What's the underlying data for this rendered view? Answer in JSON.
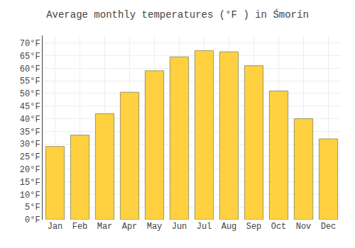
{
  "chart_data": {
    "type": "bar",
    "title": "Average monthly temperatures (°F ) in Śmorín",
    "categories": [
      "Jan",
      "Feb",
      "Mar",
      "Apr",
      "May",
      "Jun",
      "Jul",
      "Aug",
      "Sep",
      "Oct",
      "Nov",
      "Dec"
    ],
    "values": [
      29,
      33.5,
      42,
      50.5,
      59,
      64.5,
      67,
      66.5,
      61,
      51,
      40,
      32
    ],
    "color": "#FFD040",
    "ylim": [
      0,
      73
    ],
    "yticks": [
      {
        "value": 0,
        "label": "0°F"
      },
      {
        "value": 5,
        "label": "5°F"
      },
      {
        "value": 10,
        "label": "10°F"
      },
      {
        "value": 15,
        "label": "15°F"
      },
      {
        "value": 20,
        "label": "20°F"
      },
      {
        "value": 25,
        "label": "25°F"
      },
      {
        "value": 30,
        "label": "30°F"
      },
      {
        "value": 35,
        "label": "35°F"
      },
      {
        "value": 40,
        "label": "40°F"
      },
      {
        "value": 45,
        "label": "45°F"
      },
      {
        "value": 50,
        "label": "50°F"
      },
      {
        "value": 55,
        "label": "55°F"
      },
      {
        "value": 60,
        "label": "60°F"
      },
      {
        "value": 65,
        "label": "65°F"
      },
      {
        "value": 70,
        "label": "70°F"
      }
    ],
    "grid": true
  }
}
